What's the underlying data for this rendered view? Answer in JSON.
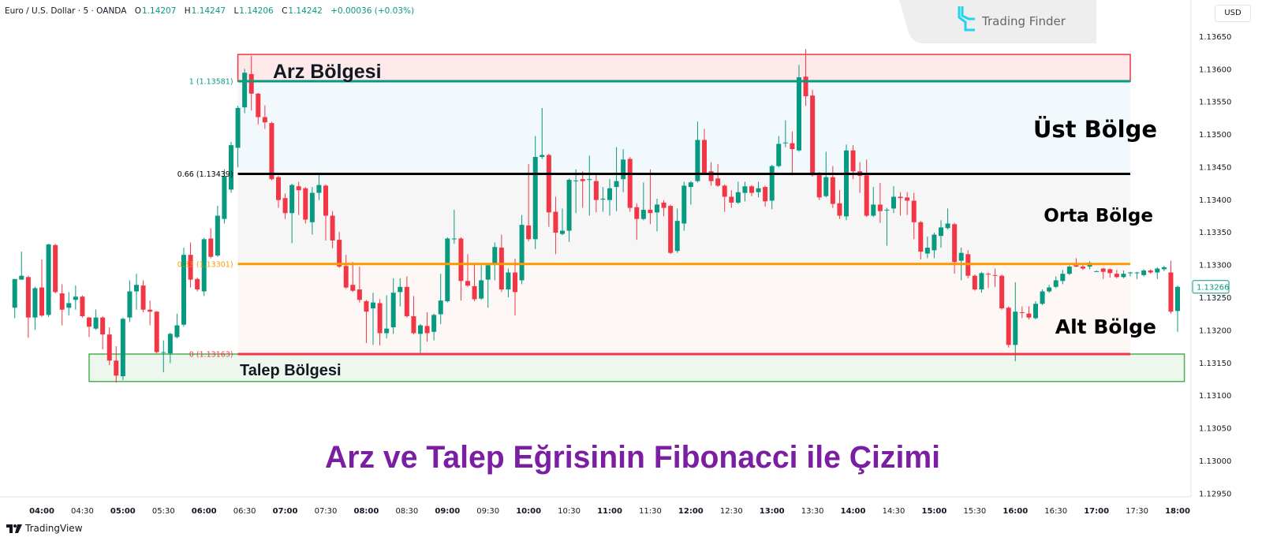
{
  "header": {
    "symbol": "Euro / U.S. Dollar · 5 · OANDA",
    "open_label": "O",
    "open": "1.14207",
    "high_label": "H",
    "high": "1.14247",
    "low_label": "L",
    "low": "1.14206",
    "close_label": "C",
    "close": "1.14242",
    "change": "+0.00036 (+0.03%)"
  },
  "currency": "USD",
  "logo": {
    "text": "Trading Finder",
    "icon": "trading-finder-logo-icon",
    "color": "#22d3ee"
  },
  "footer": {
    "brand": "TradingView",
    "icon": "tradingview-logo-icon"
  },
  "colors": {
    "up": "#089981",
    "down": "#f23645",
    "title": "#7b1fa2",
    "fib1": "#089981",
    "fib066": "#000000",
    "fib033": "#ff9800",
    "fib0": "#f23645",
    "supply": "#f23645",
    "demand": "#4caf50"
  },
  "chart_data": {
    "type": "candlestick",
    "title": "Arz ve Talep Eğrisinin Fibonacci ile Çizimi",
    "x_start": "03:40",
    "interval_minutes": 5,
    "x_ticks": [
      "04:00",
      "04:30",
      "05:00",
      "05:30",
      "06:00",
      "06:30",
      "07:00",
      "07:30",
      "08:00",
      "08:30",
      "09:00",
      "09:30",
      "10:00",
      "10:30",
      "11:00",
      "11:30",
      "12:00",
      "12:30",
      "13:00",
      "13:30",
      "14:00",
      "14:30",
      "15:00",
      "15:30",
      "16:00",
      "16:30",
      "17:00",
      "17:30",
      "18:00"
    ],
    "y_ticks": [
      "1.13650",
      "1.13600",
      "1.13550",
      "1.13500",
      "1.13450",
      "1.13400",
      "1.13350",
      "1.13300",
      "1.13250",
      "1.13200",
      "1.13150",
      "1.13100",
      "1.13050",
      "1.13000",
      "1.12950"
    ],
    "ylim": [
      1.12944,
      1.13669
    ],
    "last_price": "1.13266",
    "fib_levels": [
      {
        "ratio": 1,
        "price": 1.13581,
        "label": "1 (1.13581)",
        "color": "#089981"
      },
      {
        "ratio": 0.66,
        "price": 1.13439,
        "label": "0.66 (1.13439)",
        "color": "#000000"
      },
      {
        "ratio": 0.33,
        "price": 1.13301,
        "label": "0.33 (1.13301)",
        "color": "#ff9800"
      },
      {
        "ratio": 0,
        "price": 1.13163,
        "label": "0 (1.13163)",
        "color": "#f23645"
      }
    ],
    "fib_range": {
      "from": "06:25",
      "to": "17:25"
    },
    "zones": [
      {
        "name": "Arz Bölgesi",
        "top": 1.13622,
        "bottom": 1.13581,
        "from": "06:25",
        "to": "17:25",
        "color": "#f23645"
      },
      {
        "name": "Talep Bölgesi",
        "top": 1.13163,
        "bottom": 1.13121,
        "from": "04:35",
        "to": "18:05",
        "color": "#4caf50"
      }
    ],
    "annotations": [
      "Üst Bölge",
      "Orta Bölge",
      "Alt Bölge"
    ],
    "candles": [
      [
        1.13234,
        1.13278,
        1.13218,
        1.13278
      ],
      [
        1.13277,
        1.1332,
        1.13277,
        1.13283
      ],
      [
        1.13281,
        1.13283,
        1.13188,
        1.13219
      ],
      [
        1.13219,
        1.13266,
        1.132,
        1.13264
      ],
      [
        1.13265,
        1.13308,
        1.1322,
        1.13222
      ],
      [
        1.13223,
        1.13332,
        1.1322,
        1.13331
      ],
      [
        1.1333,
        1.13332,
        1.13256,
        1.13258
      ],
      [
        1.13256,
        1.1327,
        1.13207,
        1.13231
      ],
      [
        1.13234,
        1.13258,
        1.13222,
        1.13241
      ],
      [
        1.13246,
        1.13268,
        1.13231,
        1.13251
      ],
      [
        1.13251,
        1.13253,
        1.13219,
        1.13221
      ],
      [
        1.13219,
        1.1322,
        1.13189,
        1.13205
      ],
      [
        1.13202,
        1.13231,
        1.132,
        1.13219
      ],
      [
        1.13219,
        1.13221,
        1.1317,
        1.13193
      ],
      [
        1.13193,
        1.13204,
        1.13146,
        1.13153
      ],
      [
        1.13153,
        1.13175,
        1.13119,
        1.1313
      ],
      [
        1.13129,
        1.13219,
        1.13123,
        1.13217
      ],
      [
        1.13219,
        1.13276,
        1.13212,
        1.13259
      ],
      [
        1.13259,
        1.13286,
        1.13231,
        1.13269
      ],
      [
        1.13268,
        1.13276,
        1.13227,
        1.13231
      ],
      [
        1.13231,
        1.13245,
        1.13207,
        1.13228
      ],
      [
        1.13228,
        1.13229,
        1.13164,
        1.13166
      ],
      [
        1.13166,
        1.13184,
        1.13135,
        1.13166
      ],
      [
        1.13164,
        1.13196,
        1.13149,
        1.13194
      ],
      [
        1.13189,
        1.13225,
        1.13187,
        1.13207
      ],
      [
        1.13208,
        1.13326,
        1.13205,
        1.13315
      ],
      [
        1.13315,
        1.13334,
        1.13265,
        1.13277
      ],
      [
        1.13278,
        1.1328,
        1.13259,
        1.13262
      ],
      [
        1.13259,
        1.13341,
        1.13252,
        1.13339
      ],
      [
        1.1334,
        1.13356,
        1.1331,
        1.13312
      ],
      [
        1.13314,
        1.1339,
        1.13312,
        1.13375
      ],
      [
        1.1337,
        1.13446,
        1.13363,
        1.13436
      ],
      [
        1.13415,
        1.13488,
        1.1341,
        1.13483
      ],
      [
        1.13479,
        1.13543,
        1.13449,
        1.1354
      ],
      [
        1.13541,
        1.136,
        1.13532,
        1.13594
      ],
      [
        1.13592,
        1.1362,
        1.13536,
        1.13562
      ],
      [
        1.13562,
        1.13563,
        1.13515,
        1.13526
      ],
      [
        1.13526,
        1.13544,
        1.13508,
        1.13518
      ],
      [
        1.13517,
        1.13519,
        1.13429,
        1.13431
      ],
      [
        1.13434,
        1.13436,
        1.13387,
        1.13399
      ],
      [
        1.13402,
        1.13409,
        1.1337,
        1.13379
      ],
      [
        1.13379,
        1.13424,
        1.13333,
        1.13422
      ],
      [
        1.1342,
        1.13427,
        1.13376,
        1.13414
      ],
      [
        1.13417,
        1.13419,
        1.13363,
        1.13369
      ],
      [
        1.13365,
        1.13419,
        1.13346,
        1.1341
      ],
      [
        1.1341,
        1.1344,
        1.13399,
        1.13422
      ],
      [
        1.13421,
        1.13423,
        1.13337,
        1.13375
      ],
      [
        1.13375,
        1.13382,
        1.13325,
        1.13337
      ],
      [
        1.13338,
        1.1335,
        1.13295,
        1.13297
      ],
      [
        1.13298,
        1.13315,
        1.13263,
        1.13265
      ],
      [
        1.13269,
        1.13304,
        1.13258,
        1.1326
      ],
      [
        1.13262,
        1.13297,
        1.13242,
        1.13246
      ],
      [
        1.13244,
        1.13246,
        1.1318,
        1.13228
      ],
      [
        1.13233,
        1.13257,
        1.13177,
        1.13242
      ],
      [
        1.13241,
        1.13247,
        1.13176,
        1.13195
      ],
      [
        1.13195,
        1.13253,
        1.13187,
        1.13202
      ],
      [
        1.13204,
        1.13279,
        1.13194,
        1.13257
      ],
      [
        1.13258,
        1.13279,
        1.13236,
        1.13266
      ],
      [
        1.13266,
        1.13282,
        1.13219,
        1.13221
      ],
      [
        1.13221,
        1.13252,
        1.13193,
        1.13195
      ],
      [
        1.13194,
        1.13209,
        1.13164,
        1.13207
      ],
      [
        1.13206,
        1.13227,
        1.13182,
        1.13195
      ],
      [
        1.13197,
        1.13225,
        1.13184,
        1.13223
      ],
      [
        1.13224,
        1.13286,
        1.13209,
        1.13245
      ],
      [
        1.13244,
        1.13342,
        1.13242,
        1.1334
      ],
      [
        1.13339,
        1.13384,
        1.13332,
        1.1334
      ],
      [
        1.1334,
        1.13342,
        1.13245,
        1.13275
      ],
      [
        1.13275,
        1.13316,
        1.13266,
        1.13268
      ],
      [
        1.13267,
        1.13303,
        1.13244,
        1.13247
      ],
      [
        1.13248,
        1.13299,
        1.13246,
        1.13276
      ],
      [
        1.13277,
        1.133,
        1.13234,
        1.13299
      ],
      [
        1.133,
        1.13334,
        1.13276,
        1.13327
      ],
      [
        1.13326,
        1.13346,
        1.13258,
        1.13262
      ],
      [
        1.13262,
        1.13294,
        1.1325,
        1.13288
      ],
      [
        1.13288,
        1.13309,
        1.13222,
        1.13258
      ],
      [
        1.13276,
        1.13376,
        1.1327,
        1.13361
      ],
      [
        1.1336,
        1.13454,
        1.13336,
        1.13339
      ],
      [
        1.13339,
        1.13497,
        1.13324,
        1.13465
      ],
      [
        1.13465,
        1.1354,
        1.13462,
        1.13468
      ],
      [
        1.13468,
        1.1347,
        1.13358,
        1.1338
      ],
      [
        1.13381,
        1.13404,
        1.13316,
        1.13349
      ],
      [
        1.13347,
        1.13386,
        1.13345,
        1.13352
      ],
      [
        1.13352,
        1.13432,
        1.13335,
        1.1343
      ],
      [
        1.13428,
        1.13446,
        1.13379,
        1.13429
      ],
      [
        1.13431,
        1.13443,
        1.13387,
        1.13428
      ],
      [
        1.1343,
        1.13467,
        1.13375,
        1.13431
      ],
      [
        1.13428,
        1.1344,
        1.1338,
        1.13399
      ],
      [
        1.134,
        1.13419,
        1.13381,
        1.13401
      ],
      [
        1.13399,
        1.13431,
        1.13375,
        1.13417
      ],
      [
        1.13419,
        1.1348,
        1.13382,
        1.13428
      ],
      [
        1.13431,
        1.13477,
        1.13411,
        1.13461
      ],
      [
        1.13462,
        1.13465,
        1.13381,
        1.13387
      ],
      [
        1.13388,
        1.13394,
        1.13338,
        1.1337
      ],
      [
        1.1337,
        1.13426,
        1.13368,
        1.13384
      ],
      [
        1.13384,
        1.13446,
        1.13362,
        1.13379
      ],
      [
        1.1338,
        1.13401,
        1.13351,
        1.13392
      ],
      [
        1.13395,
        1.13399,
        1.13374,
        1.13387
      ],
      [
        1.1339,
        1.13392,
        1.13316,
        1.13318
      ],
      [
        1.13321,
        1.13386,
        1.13318,
        1.13367
      ],
      [
        1.13363,
        1.13427,
        1.13352,
        1.13421
      ],
      [
        1.13419,
        1.13428,
        1.13392,
        1.13426
      ],
      [
        1.13428,
        1.13519,
        1.13426,
        1.13491
      ],
      [
        1.13491,
        1.13508,
        1.13438,
        1.1344
      ],
      [
        1.13443,
        1.13457,
        1.13421,
        1.13428
      ],
      [
        1.13432,
        1.13454,
        1.13419,
        1.13421
      ],
      [
        1.13421,
        1.13423,
        1.13381,
        1.13404
      ],
      [
        1.13404,
        1.13414,
        1.13387,
        1.13395
      ],
      [
        1.13395,
        1.13427,
        1.13393,
        1.13411
      ],
      [
        1.1341,
        1.13427,
        1.13397,
        1.1342
      ],
      [
        1.1342,
        1.13422,
        1.13405,
        1.1341
      ],
      [
        1.13411,
        1.13427,
        1.13403,
        1.13417
      ],
      [
        1.13419,
        1.13421,
        1.13389,
        1.13397
      ],
      [
        1.13398,
        1.13453,
        1.13385,
        1.13451
      ],
      [
        1.13451,
        1.13497,
        1.13449,
        1.13485
      ],
      [
        1.13486,
        1.13521,
        1.1348,
        1.13487
      ],
      [
        1.13486,
        1.13504,
        1.13437,
        1.13477
      ],
      [
        1.13475,
        1.13606,
        1.13473,
        1.13587
      ],
      [
        1.13588,
        1.1363,
        1.13543,
        1.13558
      ],
      [
        1.13559,
        1.13568,
        1.13435,
        1.13437
      ],
      [
        1.1344,
        1.13442,
        1.13399,
        1.13403
      ],
      [
        1.13405,
        1.13473,
        1.13403,
        1.13434
      ],
      [
        1.13434,
        1.13451,
        1.13387,
        1.13393
      ],
      [
        1.13394,
        1.13414,
        1.1337,
        1.13375
      ],
      [
        1.13374,
        1.13484,
        1.13368,
        1.13475
      ],
      [
        1.13475,
        1.13483,
        1.13431,
        1.13443
      ],
      [
        1.13443,
        1.13457,
        1.1341,
        1.13436
      ],
      [
        1.13437,
        1.13461,
        1.13373,
        1.13375
      ],
      [
        1.13375,
        1.13419,
        1.13373,
        1.13392
      ],
      [
        1.13392,
        1.13425,
        1.13364,
        1.13382
      ],
      [
        1.13383,
        1.13387,
        1.13329,
        1.13384
      ],
      [
        1.13386,
        1.1342,
        1.13379,
        1.13404
      ],
      [
        1.13404,
        1.13411,
        1.13375,
        1.13402
      ],
      [
        1.13403,
        1.13411,
        1.13376,
        1.13398
      ],
      [
        1.13398,
        1.1341,
        1.13339,
        1.13365
      ],
      [
        1.13365,
        1.13367,
        1.13308,
        1.1332
      ],
      [
        1.13317,
        1.13343,
        1.1331,
        1.13326
      ],
      [
        1.13322,
        1.13349,
        1.1331,
        1.13346
      ],
      [
        1.13344,
        1.13368,
        1.13326,
        1.13357
      ],
      [
        1.13356,
        1.13386,
        1.13354,
        1.13363
      ],
      [
        1.13362,
        1.13364,
        1.13286,
        1.13304
      ],
      [
        1.13306,
        1.13326,
        1.13276,
        1.13318
      ],
      [
        1.13316,
        1.13322,
        1.13279,
        1.13283
      ],
      [
        1.13283,
        1.13285,
        1.1326,
        1.13262
      ],
      [
        1.13262,
        1.13289,
        1.13257,
        1.13287
      ],
      [
        1.13286,
        1.13288,
        1.13264,
        1.13285
      ],
      [
        1.13284,
        1.13294,
        1.13266,
        1.13283
      ],
      [
        1.13283,
        1.13285,
        1.13231,
        1.13233
      ],
      [
        1.13234,
        1.13236,
        1.13173,
        1.13177
      ],
      [
        1.13177,
        1.13273,
        1.13152,
        1.13228
      ],
      [
        1.13227,
        1.13236,
        1.13218,
        1.13226
      ],
      [
        1.13225,
        1.13236,
        1.13216,
        1.13219
      ],
      [
        1.13218,
        1.13244,
        1.13216,
        1.1324
      ],
      [
        1.1324,
        1.13262,
        1.13238,
        1.13259
      ],
      [
        1.13259,
        1.13269,
        1.13257,
        1.13265
      ],
      [
        1.13266,
        1.13282,
        1.13264,
        1.13276
      ],
      [
        1.13275,
        1.13292,
        1.1327,
        1.13286
      ],
      [
        1.13286,
        1.13299,
        1.13284,
        1.13297
      ],
      [
        1.13299,
        1.1331,
        1.13296,
        1.13297
      ],
      [
        1.13297,
        1.133,
        1.13292,
        1.13294
      ],
      [
        1.13297,
        1.13305,
        1.13293,
        1.13303
      ],
      [
        1.1329,
        1.13291,
        1.13289,
        1.1329
      ],
      [
        1.13294,
        1.13295,
        1.13278,
        1.13289
      ],
      [
        1.13293,
        1.13294,
        1.1328,
        1.13287
      ],
      [
        1.13286,
        1.13292,
        1.13279,
        1.13281
      ],
      [
        1.13281,
        1.13291,
        1.13279,
        1.13286
      ],
      [
        1.13287,
        1.13289,
        1.13282,
        1.13288
      ],
      [
        1.13287,
        1.13289,
        1.13278,
        1.13288
      ],
      [
        1.13284,
        1.13293,
        1.13282,
        1.13291
      ],
      [
        1.13291,
        1.13293,
        1.13286,
        1.13288
      ],
      [
        1.13288,
        1.13296,
        1.13278,
        1.13294
      ],
      [
        1.13293,
        1.13298,
        1.1329,
        1.13296
      ],
      [
        1.13288,
        1.13306,
        1.13225,
        1.13228
      ],
      [
        1.13229,
        1.13268,
        1.13197,
        1.13266
      ]
    ]
  }
}
